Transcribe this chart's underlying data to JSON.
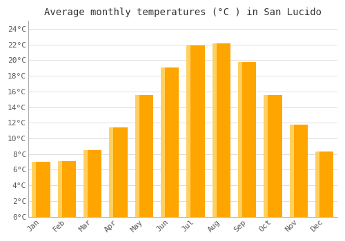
{
  "title": "Average monthly temperatures (°C ) in San Lucido",
  "months": [
    "Jan",
    "Feb",
    "Mar",
    "Apr",
    "May",
    "Jun",
    "Jul",
    "Aug",
    "Sep",
    "Oct",
    "Nov",
    "Dec"
  ],
  "temperatures": [
    7.0,
    7.1,
    8.5,
    11.4,
    15.5,
    19.1,
    21.9,
    22.1,
    19.8,
    15.5,
    11.8,
    8.3
  ],
  "bar_color_main": "#FFA500",
  "bar_color_left": "#FFD060",
  "background_color": "#FFFFFF",
  "grid_color": "#DDDDDD",
  "ylim": [
    0,
    25
  ],
  "yticks": [
    0,
    2,
    4,
    6,
    8,
    10,
    12,
    14,
    16,
    18,
    20,
    22,
    24
  ],
  "title_fontsize": 10,
  "tick_fontsize": 8,
  "font_family": "monospace"
}
